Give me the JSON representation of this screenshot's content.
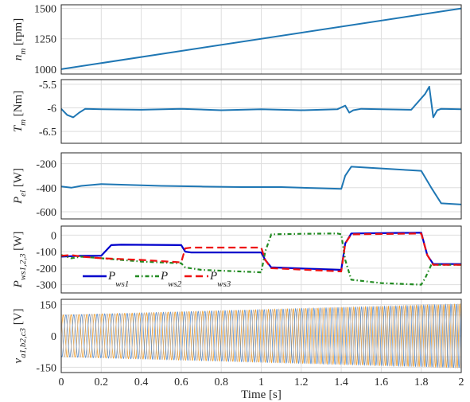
{
  "chart_data": [
    {
      "type": "line",
      "ylabel": "n_m [rpm]",
      "ylabel_main": "n",
      "ylabel_sub": "m",
      "ylabel_unit": "[rpm]",
      "ylim": [
        960,
        1530
      ],
      "yticks": [
        1000,
        1250,
        1500
      ],
      "ytick_labels": [
        "1000",
        "1250",
        "1500"
      ],
      "grid": true,
      "series": [
        {
          "color": "#1f77b4",
          "x": [
            0,
            2
          ],
          "y": [
            1000,
            1500
          ]
        }
      ]
    },
    {
      "type": "line",
      "ylabel": "T_m [Nm]",
      "ylabel_main": "T",
      "ylabel_sub": "m",
      "ylabel_unit": "[Nm]",
      "ylim": [
        -6.75,
        -5.4
      ],
      "yticks": [
        -6.5,
        -6,
        -5.5
      ],
      "ytick_labels": [
        "-6.5",
        "-6",
        "-5.5"
      ],
      "grid": true,
      "series": [
        {
          "color": "#1f77b4",
          "x": [
            0,
            0.03,
            0.06,
            0.09,
            0.12,
            0.2,
            0.4,
            0.6,
            0.8,
            1.0,
            1.2,
            1.38,
            1.42,
            1.44,
            1.46,
            1.5,
            1.6,
            1.75,
            1.82,
            1.84,
            1.86,
            1.88,
            1.9,
            2.0
          ],
          "y": [
            -6.02,
            -6.15,
            -6.2,
            -6.1,
            -6.02,
            -6.03,
            -6.04,
            -6.02,
            -6.05,
            -6.03,
            -6.05,
            -6.03,
            -5.95,
            -6.1,
            -6.05,
            -6.02,
            -6.03,
            -6.04,
            -5.7,
            -5.55,
            -6.2,
            -6.05,
            -6.02,
            -6.03
          ]
        }
      ]
    },
    {
      "type": "line",
      "ylabel": "P_el [W]",
      "ylabel_main": "P",
      "ylabel_sub": "el",
      "ylabel_unit": "[W]",
      "ylim": [
        -660,
        -110
      ],
      "yticks": [
        -600,
        -400,
        -200
      ],
      "ytick_labels": [
        "-600",
        "-400",
        "-200"
      ],
      "grid": true,
      "series": [
        {
          "color": "#1f77b4",
          "x": [
            0,
            0.05,
            0.1,
            0.2,
            0.3,
            0.5,
            0.7,
            0.9,
            1.1,
            1.3,
            1.4,
            1.42,
            1.45,
            1.5,
            1.6,
            1.75,
            1.8,
            1.85,
            1.9,
            2.0
          ],
          "y": [
            -390,
            -400,
            -385,
            -370,
            -375,
            -385,
            -390,
            -395,
            -395,
            -405,
            -410,
            -300,
            -225,
            -230,
            -240,
            -255,
            -260,
            -400,
            -530,
            -540
          ]
        }
      ]
    },
    {
      "type": "line",
      "ylabel": "P_ws1,2,3 [W]",
      "ylabel_main": "P",
      "ylabel_sub": "ws1,2,3",
      "ylabel_unit": "[W]",
      "ylim": [
        -350,
        55
      ],
      "yticks": [
        -300,
        -200,
        -100,
        0
      ],
      "ytick_labels": [
        "-300",
        "-200",
        "-100",
        "0"
      ],
      "grid": true,
      "series": [
        {
          "name": "P_ws1",
          "name_main": "P",
          "name_sub": "ws1",
          "color": "#0000cc",
          "dash": "",
          "x": [
            0,
            0.1,
            0.2,
            0.25,
            0.3,
            0.6,
            0.62,
            0.65,
            1.0,
            1.02,
            1.05,
            1.4,
            1.42,
            1.45,
            1.8,
            1.83,
            1.86,
            2.0
          ],
          "y": [
            -130,
            -125,
            -125,
            -60,
            -58,
            -60,
            -100,
            -105,
            -105,
            -150,
            -195,
            -210,
            -50,
            10,
            15,
            -120,
            -175,
            -175
          ]
        },
        {
          "name": "P_ws2",
          "name_main": "P",
          "name_sub": "ws2",
          "color": "#228b22",
          "dash": "5,3,1.5,3",
          "x": [
            0,
            0.05,
            0.1,
            0.2,
            0.4,
            0.6,
            0.62,
            0.7,
            1.0,
            1.02,
            1.05,
            1.2,
            1.38,
            1.4,
            1.42,
            1.45,
            1.6,
            1.8,
            1.82,
            1.85,
            1.9,
            2.0
          ],
          "y": [
            -120,
            -140,
            -130,
            -140,
            -160,
            -170,
            -195,
            -210,
            -225,
            -100,
            5,
            8,
            10,
            5,
            -150,
            -270,
            -290,
            -300,
            -260,
            -180,
            -180,
            -180
          ]
        },
        {
          "name": "P_ws3",
          "name_main": "P",
          "name_sub": "ws3",
          "color": "#ee1111",
          "dash": "9,5",
          "x": [
            0,
            0.05,
            0.1,
            0.2,
            0.4,
            0.6,
            0.62,
            0.65,
            0.9,
            1.0,
            1.02,
            1.05,
            1.4,
            1.42,
            1.45,
            1.8,
            1.83,
            1.86,
            2.0
          ],
          "y": [
            -125,
            -120,
            -130,
            -140,
            -150,
            -165,
            -80,
            -75,
            -75,
            -75,
            -150,
            -200,
            -220,
            -50,
            5,
            10,
            -120,
            -180,
            -180
          ]
        }
      ],
      "legend": "bottom-left"
    },
    {
      "type": "line",
      "ylabel": "v_a1,b2,c3 [V]",
      "ylabel_main": "v",
      "ylabel_sub": "a1,b2,c3",
      "ylabel_unit": "[V]",
      "ylim": [
        -175,
        175
      ],
      "yticks": [
        -150,
        -100,
        0,
        100,
        150
      ],
      "ytick_labels": [
        "-150",
        "",
        "0",
        "",
        "150"
      ],
      "grid": true,
      "xlim": [
        0,
        2
      ],
      "xticks": [
        0,
        0.2,
        0.4,
        0.6,
        0.8,
        1,
        1.2,
        1.4,
        1.6,
        1.8,
        2
      ],
      "xtick_labels": [
        "0",
        "0.2",
        "0.4",
        "0.6",
        "0.8",
        "1",
        "1.2",
        "1.4",
        "1.6",
        "1.8",
        "2"
      ],
      "xlabel": "Time [s]",
      "signal": {
        "kind": "three-phase sinusoid",
        "amplitude_start": 100,
        "amplitude_end": 152,
        "freq_start_hz": 25,
        "freq_end_hz": 37.5,
        "colors": [
          "#f0a030",
          "#5a8fd0",
          "#c8b4a0"
        ]
      }
    }
  ]
}
